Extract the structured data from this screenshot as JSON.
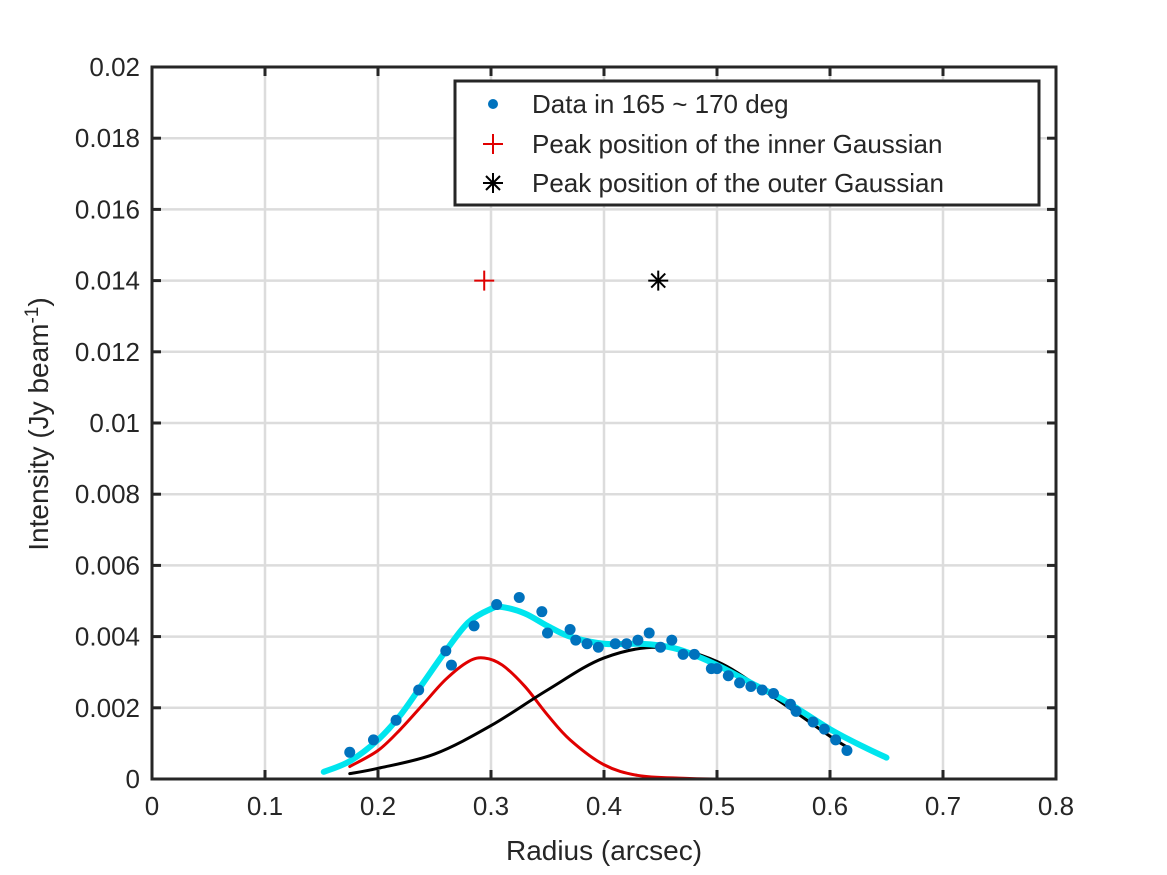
{
  "chart_data": {
    "type": "line",
    "xlabel": "Radius (arcsec)",
    "ylabel": {
      "prefix": "Intensity (Jy beam",
      "superscript": "-1",
      "suffix": ")"
    },
    "xlim": [
      0,
      0.8
    ],
    "ylim": [
      0,
      0.02
    ],
    "xticks": [
      0,
      0.1,
      0.2,
      0.3,
      0.4,
      0.5,
      0.6,
      0.7,
      0.8
    ],
    "xtick_labels": [
      "0",
      "0.1",
      "0.2",
      "0.3",
      "0.4",
      "0.5",
      "0.6",
      "0.7",
      "0.8"
    ],
    "yticks": [
      0,
      0.002,
      0.004,
      0.006,
      0.008,
      0.01,
      0.012,
      0.014,
      0.016,
      0.018,
      0.02
    ],
    "ytick_labels": [
      "0",
      "0.002",
      "0.004",
      "0.006",
      "0.008",
      "0.01",
      "0.012",
      "0.014",
      "0.016",
      "0.018",
      "0.02"
    ],
    "grid": true,
    "legend_position": "top-right",
    "colors": {
      "data": "#0072BD",
      "inner_fit": "#E00000",
      "outer_fit": "#000000",
      "total_fit": "#00E5EE",
      "inner_peak_marker": "#E00000",
      "outer_peak_marker": "#000000"
    },
    "series": [
      {
        "name": "Data in 165 ~ 170 deg",
        "kind": "points",
        "x": [
          0.175,
          0.196,
          0.216,
          0.236,
          0.26,
          0.265,
          0.285,
          0.305,
          0.325,
          0.345,
          0.35,
          0.37,
          0.375,
          0.385,
          0.395,
          0.41,
          0.42,
          0.43,
          0.44,
          0.45,
          0.46,
          0.47,
          0.48,
          0.495,
          0.5,
          0.51,
          0.52,
          0.53,
          0.54,
          0.55,
          0.565,
          0.57,
          0.585,
          0.595,
          0.605,
          0.615
        ],
        "y": [
          0.00075,
          0.0011,
          0.00165,
          0.0025,
          0.0036,
          0.0032,
          0.0043,
          0.0049,
          0.0051,
          0.0047,
          0.0041,
          0.0042,
          0.0039,
          0.0038,
          0.0037,
          0.0038,
          0.0038,
          0.0039,
          0.0041,
          0.0037,
          0.0039,
          0.0035,
          0.0035,
          0.0031,
          0.0031,
          0.0029,
          0.0027,
          0.0026,
          0.0025,
          0.0024,
          0.0021,
          0.0019,
          0.0016,
          0.0014,
          0.0011,
          0.0008
        ]
      },
      {
        "name": "Peak position of the inner Gaussian",
        "kind": "marker",
        "x": [
          0.294
        ],
        "y": [
          0.014
        ]
      },
      {
        "name": "Peak position of the outer Gaussian",
        "kind": "marker",
        "x": [
          0.448
        ],
        "y": [
          0.014
        ]
      },
      {
        "kind": "line",
        "role": "inner Gaussian fit",
        "x": [
          0.175,
          0.2,
          0.22,
          0.24,
          0.26,
          0.28,
          0.294,
          0.31,
          0.33,
          0.35,
          0.37,
          0.4,
          0.43,
          0.47,
          0.5,
          0.55,
          0.6,
          0.615
        ],
        "y": [
          0.00035,
          0.0008,
          0.0014,
          0.0021,
          0.0028,
          0.0033,
          0.0034,
          0.0032,
          0.0026,
          0.0018,
          0.0011,
          0.0004,
          0.0001,
          2e-05,
          0.0,
          0.0,
          0.0,
          0.0
        ]
      },
      {
        "kind": "line",
        "role": "outer Gaussian fit",
        "x": [
          0.175,
          0.2,
          0.25,
          0.3,
          0.35,
          0.4,
          0.45,
          0.5,
          0.55,
          0.6,
          0.615
        ],
        "y": [
          0.00015,
          0.0003,
          0.0007,
          0.0015,
          0.0025,
          0.0034,
          0.0037,
          0.0033,
          0.0023,
          0.0012,
          0.0009
        ]
      },
      {
        "kind": "line",
        "role": "total fit",
        "x": [
          0.152,
          0.175,
          0.2,
          0.22,
          0.24,
          0.26,
          0.28,
          0.3,
          0.31,
          0.33,
          0.35,
          0.37,
          0.4,
          0.43,
          0.45,
          0.47,
          0.5,
          0.53,
          0.56,
          0.6,
          0.63,
          0.65
        ],
        "y": [
          0.0002,
          0.0005,
          0.0011,
          0.0018,
          0.0027,
          0.0036,
          0.0044,
          0.00478,
          0.00483,
          0.00465,
          0.0043,
          0.004,
          0.0038,
          0.0038,
          0.00375,
          0.0036,
          0.0032,
          0.0027,
          0.0022,
          0.0014,
          0.0009,
          0.0006
        ]
      }
    ]
  }
}
